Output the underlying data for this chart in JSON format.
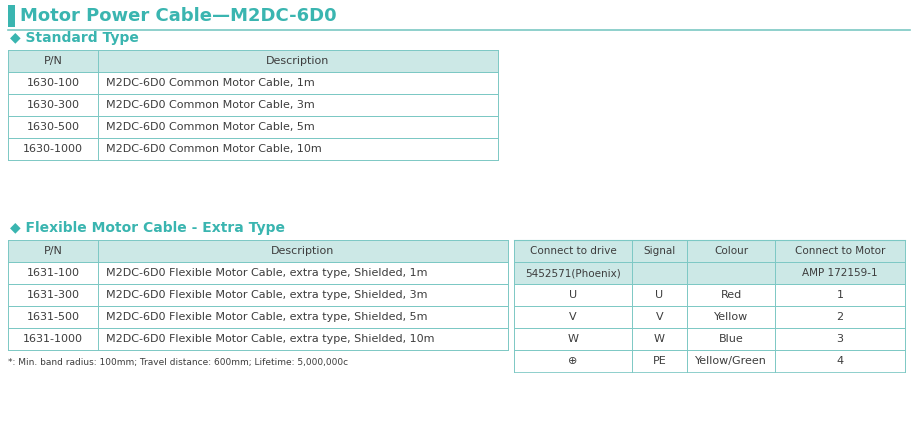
{
  "title": "Motor Power Cable—M2DC-6D0",
  "title_color": "#3ab5b0",
  "title_bar_color": "#3ab5b0",
  "section1_title": "◆ Standard Type",
  "section2_title": "◆ Flexible Motor Cable - Extra Type",
  "section_color": "#3ab5b0",
  "table_header_bg": "#cce8e6",
  "table_border_color": "#7cc8c4",
  "std_table_rows": [
    [
      "1630-100",
      "M2DC-6D0 Common Motor Cable, 1m"
    ],
    [
      "1630-300",
      "M2DC-6D0 Common Motor Cable, 3m"
    ],
    [
      "1630-500",
      "M2DC-6D0 Common Motor Cable, 5m"
    ],
    [
      "1630-1000",
      "M2DC-6D0 Common Motor Cable, 10m"
    ]
  ],
  "flex_table_rows": [
    [
      "1631-100",
      "M2DC-6D0 Flexible Motor Cable, extra type, Shielded, 1m"
    ],
    [
      "1631-300",
      "M2DC-6D0 Flexible Motor Cable, extra type, Shielded, 3m"
    ],
    [
      "1631-500",
      "M2DC-6D0 Flexible Motor Cable, extra type, Shielded, 5m"
    ],
    [
      "1631-1000",
      "M2DC-6D0 Flexible Motor Cable, extra type, Shielded, 10m"
    ]
  ],
  "flex_note": "*: Min. band radius: 100mm; Travel distance: 600mm; Lifetime: 5,000,000c",
  "conn_table_rows": [
    [
      "U",
      "U",
      "Red",
      "1"
    ],
    [
      "V",
      "V",
      "Yellow",
      "2"
    ],
    [
      "W",
      "W",
      "Blue",
      "3"
    ],
    [
      "⊕",
      "PE",
      "Yellow/Green",
      "4"
    ]
  ],
  "bg_color": "#ffffff",
  "text_color": "#3d3d3d",
  "font_size": 8.0,
  "small_font_size": 7.5,
  "title_font_size": 13,
  "section_font_size": 10
}
